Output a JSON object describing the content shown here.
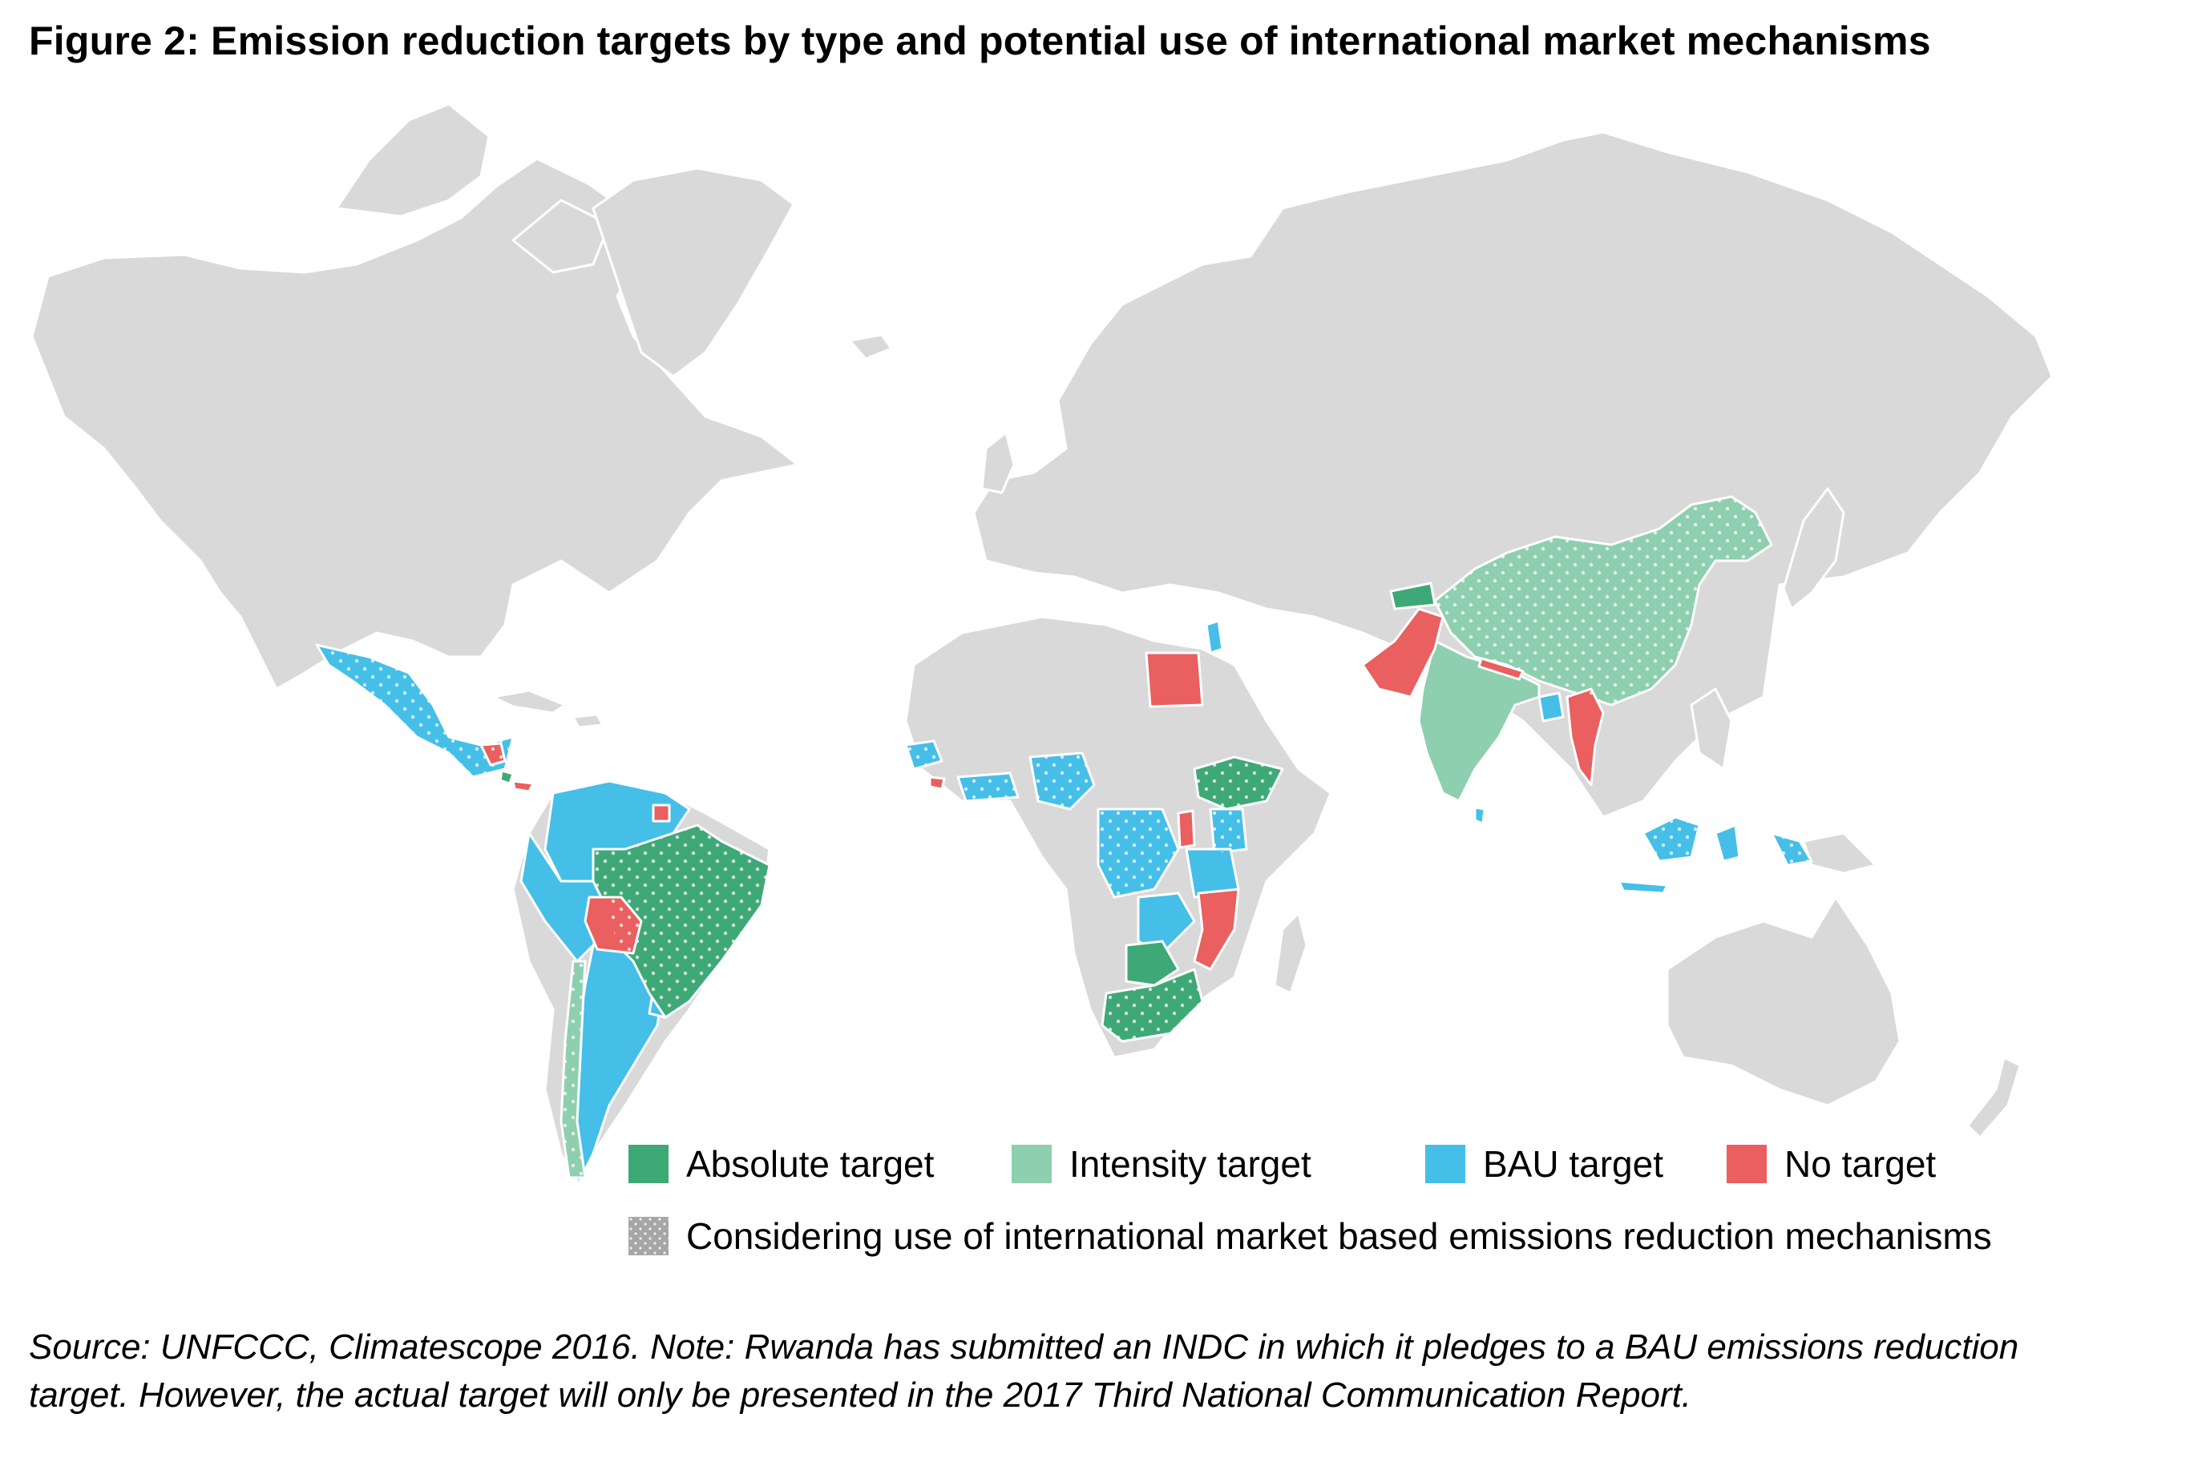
{
  "title": "Figure 2: Emission reduction targets by type and potential use of international market mechanisms",
  "colors": {
    "land": "#d9d9d9",
    "absolute": "#3fa877",
    "intensity": "#8ecfaf",
    "bau": "#45bfe8",
    "none": "#ea5f5f",
    "considering": "#a6a6a6"
  },
  "legend": {
    "absolute": "Absolute target",
    "intensity": "Intensity target",
    "bau": "BAU target",
    "none": "No target",
    "considering": "Considering use of international market based emissions reduction mechanisms"
  },
  "regions": {
    "absolute": [
      "Brazil",
      "Ethiopia",
      "South Africa",
      "Botswana",
      "Tajikistan",
      "Costa Rica"
    ],
    "intensity": [
      "China",
      "India",
      "Chile"
    ],
    "bau": [
      "Mexico",
      "Guatemala",
      "Colombia",
      "Venezuela",
      "Ecuador",
      "Peru",
      "Argentina",
      "Uruguay",
      "Paraguay",
      "Cote d'Ivoire",
      "Ghana",
      "Senegal",
      "Nigeria",
      "DR Congo",
      "Uganda",
      "Kenya",
      "Tanzania",
      "Zambia",
      "Zimbabwe",
      "Jordan",
      "Bangladesh",
      "Sri Lanka",
      "Indonesia"
    ],
    "none": [
      "Egypt",
      "Pakistan",
      "Nepal",
      "Myanmar",
      "Bolivia",
      "Honduras",
      "Panama",
      "Suriname",
      "Liberia",
      "Rwanda",
      "Malawi",
      "Mozambique"
    ]
  },
  "source": "Source: UNFCCC, Climatescope 2016. Note: Rwanda has submitted an INDC in which it pledges to a BAU emissions reduction target. However, the actual target will only be presented in the 2017 Third National Communication Report."
}
